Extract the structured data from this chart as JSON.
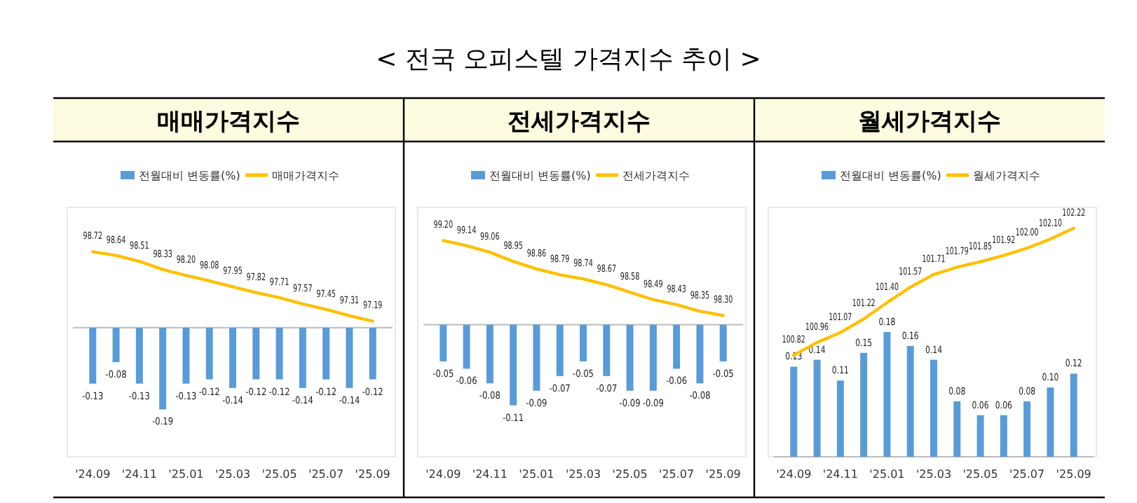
{
  "chart_data": [
    {
      "type": "other",
      "title": "< 전국 오피스텔 가격지수 추이 >"
    },
    {
      "type": "bar",
      "title": "매매가격지수",
      "categories": [
        "'24.09",
        null,
        "'24.11",
        null,
        "'25.01",
        null,
        "'25.03",
        null,
        "'25.05",
        null,
        "'25.07",
        null,
        "'25.09"
      ],
      "series": [
        {
          "name": "전월대비 변동률(%)",
          "type": "bar",
          "color": "#5b9bd5",
          "values": [
            -0.13,
            -0.08,
            -0.13,
            -0.19,
            -0.13,
            -0.12,
            -0.14,
            -0.12,
            -0.12,
            -0.14,
            -0.12,
            -0.14,
            -0.12
          ],
          "value_labels": [
            "-0.13",
            "-0.08",
            "-0.13",
            "-0.19",
            "-0.13",
            "-0.12",
            "-0.14",
            "-0.12",
            "-0.12",
            "-0.14",
            "-0.12",
            "-0.14",
            "-0.12"
          ]
        },
        {
          "name": "매매가격지수",
          "type": "line",
          "axis": "y2",
          "color": "#ffc000",
          "values": [
            98.72,
            98.64,
            98.51,
            98.33,
            98.2,
            98.08,
            97.95,
            97.82,
            97.71,
            97.57,
            97.45,
            97.31,
            97.19
          ],
          "value_labels": [
            "98.72",
            "98.64",
            "98.51",
            "98.33",
            "98.20",
            "98.08",
            "97.95",
            "97.82",
            "97.71",
            "97.57",
            "97.45",
            "97.31",
            "97.19"
          ]
        }
      ],
      "ylim": [
        -0.3,
        0.28
      ],
      "y2lim": [
        94.2,
        99.7
      ],
      "legend": "top",
      "tick_labels": "x"
    },
    {
      "type": "bar",
      "title": "전세가격지수",
      "categories": [
        "'24.09",
        null,
        "'24.11",
        null,
        "'25.01",
        null,
        "'25.03",
        null,
        "'25.05",
        null,
        "'25.07",
        null,
        "'25.09"
      ],
      "series": [
        {
          "name": "전월대비 변동률(%)",
          "type": "bar",
          "color": "#5b9bd5",
          "values": [
            -0.05,
            -0.06,
            -0.08,
            -0.11,
            -0.09,
            -0.07,
            -0.05,
            -0.07,
            -0.09,
            -0.09,
            -0.06,
            -0.08,
            -0.05
          ],
          "value_labels": [
            "-0.05",
            "-0.06",
            "-0.08",
            "-0.11",
            "-0.09",
            "-0.07",
            "-0.05",
            "-0.07",
            "-0.09",
            "-0.09",
            "-0.06",
            "-0.08",
            "-0.05"
          ]
        },
        {
          "name": "전세가격지수",
          "type": "line",
          "axis": "y2",
          "color": "#ffc000",
          "values": [
            99.2,
            99.14,
            99.06,
            98.95,
            98.86,
            98.79,
            98.74,
            98.67,
            98.58,
            98.49,
            98.43,
            98.35,
            98.3
          ],
          "value_labels": [
            "99.20",
            "99.14",
            "99.06",
            "98.95",
            "98.86",
            "98.79",
            "98.74",
            "98.67",
            "98.58",
            "98.49",
            "98.43",
            "98.35",
            "98.30"
          ]
        }
      ],
      "ylim": [
        -0.18,
        0.16
      ],
      "y2lim": [
        96.6,
        99.6
      ],
      "legend": "top",
      "tick_labels": "x"
    },
    {
      "type": "bar",
      "title": "월세가격지수",
      "categories": [
        "'24.09",
        null,
        "'24.11",
        null,
        "'25.01",
        null,
        "'25.03",
        null,
        "'25.05",
        null,
        "'25.07",
        null,
        "'25.09"
      ],
      "series": [
        {
          "name": "전월대비 변동률(%)",
          "type": "bar",
          "color": "#5b9bd5",
          "values": [
            0.13,
            0.14,
            0.11,
            0.15,
            0.18,
            0.16,
            0.14,
            0.08,
            0.06,
            0.06,
            0.08,
            0.1,
            0.12
          ],
          "value_labels": [
            "0.13",
            "0.14",
            "0.11",
            "0.15",
            "0.18",
            "0.16",
            "0.14",
            "0.08",
            "0.06",
            "0.06",
            "0.08",
            "0.10",
            "0.12"
          ]
        },
        {
          "name": "월세가격지수",
          "type": "line",
          "axis": "y2",
          "color": "#ffc000",
          "values": [
            100.82,
            100.96,
            101.07,
            101.22,
            101.4,
            101.57,
            101.71,
            101.79,
            101.85,
            101.92,
            102.0,
            102.1,
            102.22
          ],
          "value_labels": [
            "100.82",
            "100.96",
            "101.07",
            "101.22",
            "101.40",
            "101.57",
            "101.71",
            "101.79",
            "101.85",
            "101.92",
            "102.00",
            "102.10",
            "102.22"
          ]
        }
      ],
      "ylim": [
        0,
        0.36
      ],
      "y2lim": [
        99.7,
        102.45
      ],
      "legend": "top",
      "tick_labels": "x"
    }
  ]
}
